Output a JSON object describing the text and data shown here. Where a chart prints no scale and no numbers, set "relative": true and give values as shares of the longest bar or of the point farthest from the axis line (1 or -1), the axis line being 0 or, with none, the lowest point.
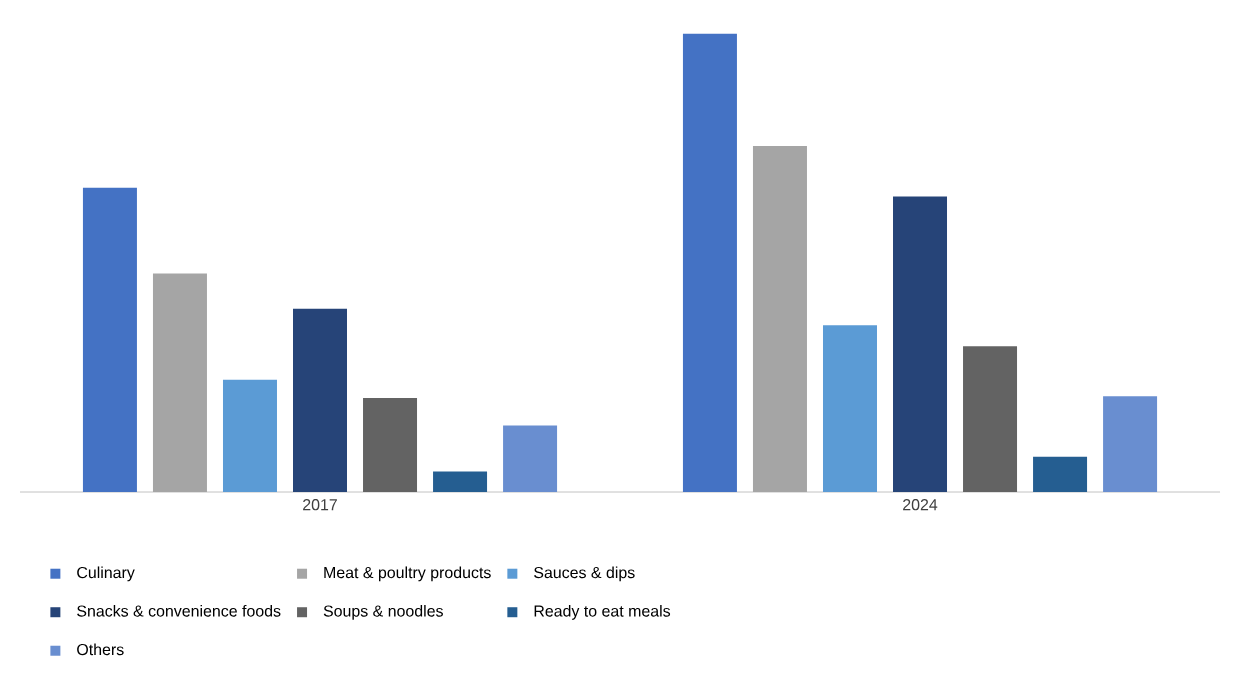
{
  "chart_data": {
    "type": "bar",
    "relative": true,
    "categories": [
      "2017",
      "2024"
    ],
    "series": [
      {
        "name": "Culinary",
        "color": "#4472c4",
        "values": [
          0.664,
          1
        ]
      },
      {
        "name": "Meat & poultry products",
        "color": "#a5a5a5",
        "values": [
          0.477,
          0.755
        ]
      },
      {
        "name": "Sauces & dips",
        "color": "#5b9bd5",
        "values": [
          0.245,
          0.364
        ]
      },
      {
        "name": "Snacks & convenience foods",
        "color": "#264478",
        "values": [
          0.4,
          0.645
        ]
      },
      {
        "name": "Soups & noodles",
        "color": "#636363",
        "values": [
          0.205,
          0.318
        ]
      },
      {
        "name": "Ready to eat meals",
        "color": "#255e91",
        "values": [
          0.045,
          0.077
        ]
      },
      {
        "name": "Others",
        "color": "#698ed0",
        "values": [
          0.145,
          0.209
        ]
      }
    ],
    "legend": "bottom left"
  }
}
